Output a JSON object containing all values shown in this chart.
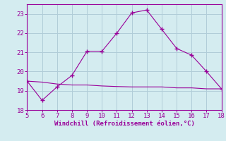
{
  "x_curve": [
    5,
    6,
    7,
    8,
    9,
    10,
    11,
    12,
    13,
    14,
    15,
    16,
    17,
    18
  ],
  "y_curve": [
    19.5,
    18.5,
    19.2,
    19.8,
    21.05,
    21.05,
    22.0,
    23.05,
    23.2,
    22.2,
    21.2,
    20.85,
    20.0,
    19.1
  ],
  "x_flat": [
    5,
    6,
    7,
    8,
    9,
    10,
    11,
    12,
    13,
    14,
    15,
    16,
    17,
    18
  ],
  "y_flat": [
    19.5,
    19.45,
    19.35,
    19.3,
    19.3,
    19.25,
    19.22,
    19.2,
    19.2,
    19.2,
    19.15,
    19.15,
    19.1,
    19.1
  ],
  "line_color": "#990099",
  "bg_color": "#d4ecf0",
  "grid_color": "#b0cdd8",
  "xlabel": "Windchill (Refroidissement éolien,°C)",
  "xlim": [
    5,
    18
  ],
  "ylim": [
    18,
    23.5
  ],
  "xticks": [
    5,
    6,
    7,
    8,
    9,
    10,
    11,
    12,
    13,
    14,
    15,
    16,
    17,
    18
  ],
  "yticks": [
    18,
    19,
    20,
    21,
    22,
    23
  ],
  "tick_color": "#990099",
  "label_fontsize": 6.5,
  "tick_fontsize": 6.5
}
